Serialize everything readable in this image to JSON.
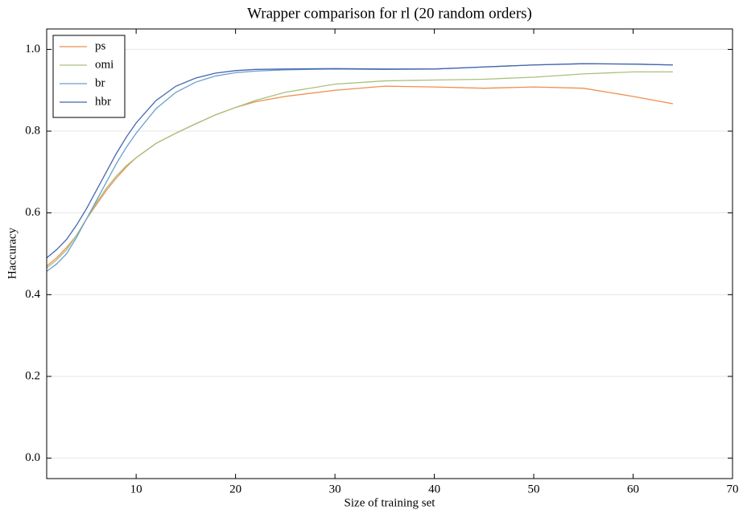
{
  "chart_data": {
    "type": "line",
    "title": "Wrapper comparison for rl (20 random orders)",
    "x_label": "Size of training set",
    "y_label": "Haccuracy",
    "x": [
      1,
      2,
      3,
      4,
      5,
      6,
      7,
      8,
      9,
      10,
      12,
      14,
      16,
      18,
      20,
      22,
      25,
      30,
      35,
      40,
      45,
      50,
      55,
      60,
      64
    ],
    "series": [
      {
        "name": "ps",
        "color": "#ee8f4e",
        "values": [
          0.47,
          0.49,
          0.515,
          0.545,
          0.585,
          0.62,
          0.655,
          0.685,
          0.712,
          0.735,
          0.77,
          0.795,
          0.818,
          0.84,
          0.858,
          0.872,
          0.885,
          0.9,
          0.91,
          0.908,
          0.905,
          0.908,
          0.905,
          0.885,
          0.867
        ]
      },
      {
        "name": "omi",
        "color": "#a8c07e",
        "values": [
          0.465,
          0.485,
          0.51,
          0.545,
          0.585,
          0.625,
          0.66,
          0.69,
          0.715,
          0.735,
          0.77,
          0.795,
          0.818,
          0.84,
          0.858,
          0.875,
          0.895,
          0.915,
          0.923,
          0.925,
          0.927,
          0.932,
          0.94,
          0.945,
          0.945
        ]
      },
      {
        "name": "br",
        "color": "#6a9fcc",
        "values": [
          0.457,
          0.475,
          0.5,
          0.54,
          0.585,
          0.63,
          0.675,
          0.72,
          0.76,
          0.795,
          0.855,
          0.895,
          0.92,
          0.935,
          0.943,
          0.947,
          0.95,
          0.952,
          0.951,
          0.952,
          0.957,
          0.962,
          0.965,
          0.964,
          0.962
        ]
      },
      {
        "name": "hbr",
        "color": "#4466b0",
        "values": [
          0.49,
          0.51,
          0.535,
          0.57,
          0.61,
          0.655,
          0.7,
          0.745,
          0.785,
          0.82,
          0.875,
          0.91,
          0.93,
          0.942,
          0.948,
          0.951,
          0.952,
          0.953,
          0.952,
          0.952,
          0.957,
          0.962,
          0.965,
          0.964,
          0.962
        ]
      }
    ],
    "xlim": [
      1,
      70
    ],
    "xticks": [
      10,
      20,
      30,
      40,
      50,
      60,
      70
    ],
    "ylim": [
      -0.05,
      1.05
    ],
    "yticks": [
      {
        "value": 0,
        "label": "0.0"
      },
      0.2,
      0.4,
      0.6,
      0.8,
      {
        "value": 1,
        "label": "1.0"
      }
    ],
    "grid": true,
    "legend": "upper-left"
  }
}
